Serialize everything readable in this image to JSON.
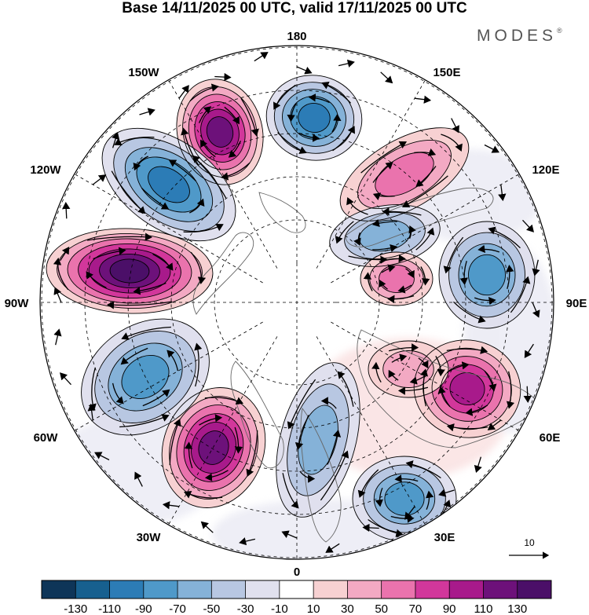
{
  "title": "Base 14/11/2025 00 UTC, valid 17/11/2025 00 UTC",
  "brand": {
    "name": "MODES",
    "mark": "®"
  },
  "longitude_labels": {
    "lon_180": "180",
    "lon_150E": "150E",
    "lon_120E": "120E",
    "lon_90E": "90E",
    "lon_60E": "60E",
    "lon_30E": "30E",
    "lon_0": "0",
    "lon_30W": "30W",
    "lon_60W": "60W",
    "lon_90W": "90W",
    "lon_120W": "120W",
    "lon_150W": "150W"
  },
  "reference_vector": {
    "label": "10"
  },
  "colorbar": {
    "ticks": [
      "-130",
      "-110",
      "-90",
      "-70",
      "-50",
      "-30",
      "-10",
      "10",
      "30",
      "50",
      "70",
      "90",
      "110",
      "130"
    ],
    "colors": [
      "#0e3558",
      "#17608f",
      "#2c7cb6",
      "#4f99c9",
      "#85b2d8",
      "#b8c7e2",
      "#e0e0ee",
      "#ffffff",
      "#f7d1d2",
      "#f3a9c3",
      "#ea73ad",
      "#d2379b",
      "#a81a8b",
      "#6d117a",
      "#4b0f68"
    ]
  },
  "anomaly_centers": [
    {
      "sign": "positive",
      "strength": 110
    },
    {
      "sign": "negative",
      "strength": -90
    },
    {
      "sign": "positive",
      "strength": 130
    },
    {
      "sign": "negative",
      "strength": -90
    },
    {
      "sign": "positive",
      "strength": 110
    },
    {
      "sign": "negative",
      "strength": -50
    },
    {
      "sign": "negative",
      "strength": -70
    },
    {
      "sign": "positive",
      "strength": 90
    },
    {
      "sign": "negative",
      "strength": -70
    },
    {
      "sign": "positive",
      "strength": 50
    },
    {
      "sign": "negative",
      "strength": -50
    },
    {
      "sign": "positive",
      "strength": 50
    },
    {
      "sign": "negative",
      "strength": -70
    },
    {
      "sign": "positive",
      "strength": 30
    }
  ]
}
